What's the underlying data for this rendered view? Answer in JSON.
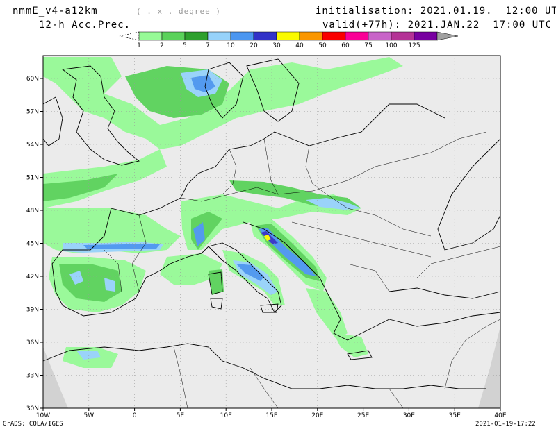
{
  "header": {
    "model": "nmmE_v4-a12km",
    "units": "( . x . degree )",
    "field": "12-h Acc.Prec.",
    "init": "initialisation: 2021.01.19.  12:00 UTC",
    "valid": "valid(+77h): 2021.JAN.22  17:00 UTC"
  },
  "colorbar": {
    "labels": [
      "1",
      "2",
      "5",
      "7",
      "10",
      "20",
      "30",
      "40",
      "50",
      "60",
      "75",
      "100",
      "125"
    ],
    "colors": [
      "#96fa96",
      "#5ad25a",
      "#2da02d",
      "#96d2fa",
      "#4b96f0",
      "#3232c8",
      "#fafa00",
      "#fa9600",
      "#fa0000",
      "#fa0096",
      "#c864c8",
      "#b43296",
      "#7800a0",
      "#a0a0a0"
    ]
  },
  "axes": {
    "lat_labels": [
      "60N",
      "57N",
      "54N",
      "51N",
      "48N",
      "45N",
      "42N",
      "39N",
      "36N",
      "33N",
      "30N"
    ],
    "lon_labels": [
      "10W",
      "5W",
      "0",
      "5E",
      "10E",
      "15E",
      "20E",
      "25E",
      "30E",
      "35E",
      "40E"
    ]
  },
  "footer": {
    "left": "GrADS: COLA/IGES",
    "right": "2021-01-19-17:22"
  }
}
